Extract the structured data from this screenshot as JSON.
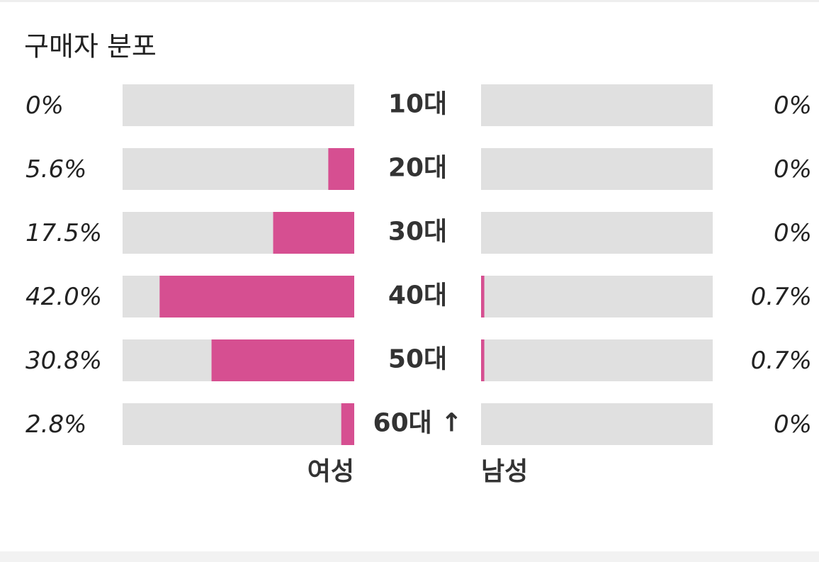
{
  "chart_data": {
    "type": "butterfly",
    "title": "구매자 분포",
    "categories": [
      "10대",
      "20대",
      "30대",
      "40대",
      "50대",
      "60대 ↑"
    ],
    "series": [
      {
        "name": "여성",
        "color": "#d64f91",
        "values": [
          0,
          5.6,
          17.5,
          42.0,
          30.8,
          2.8
        ],
        "value_labels": [
          "0%",
          "5.6%",
          "17.5%",
          "42.0%",
          "30.8%",
          "2.8%"
        ]
      },
      {
        "name": "남성",
        "color": "#d64f91",
        "values": [
          0,
          0,
          0,
          0.7,
          0.7,
          0
        ],
        "value_labels": [
          "0%",
          "0%",
          "0%",
          "0.7%",
          "0.7%",
          "0%"
        ]
      }
    ],
    "xlim": [
      0,
      50
    ],
    "track_color": "#e0e0e0"
  }
}
